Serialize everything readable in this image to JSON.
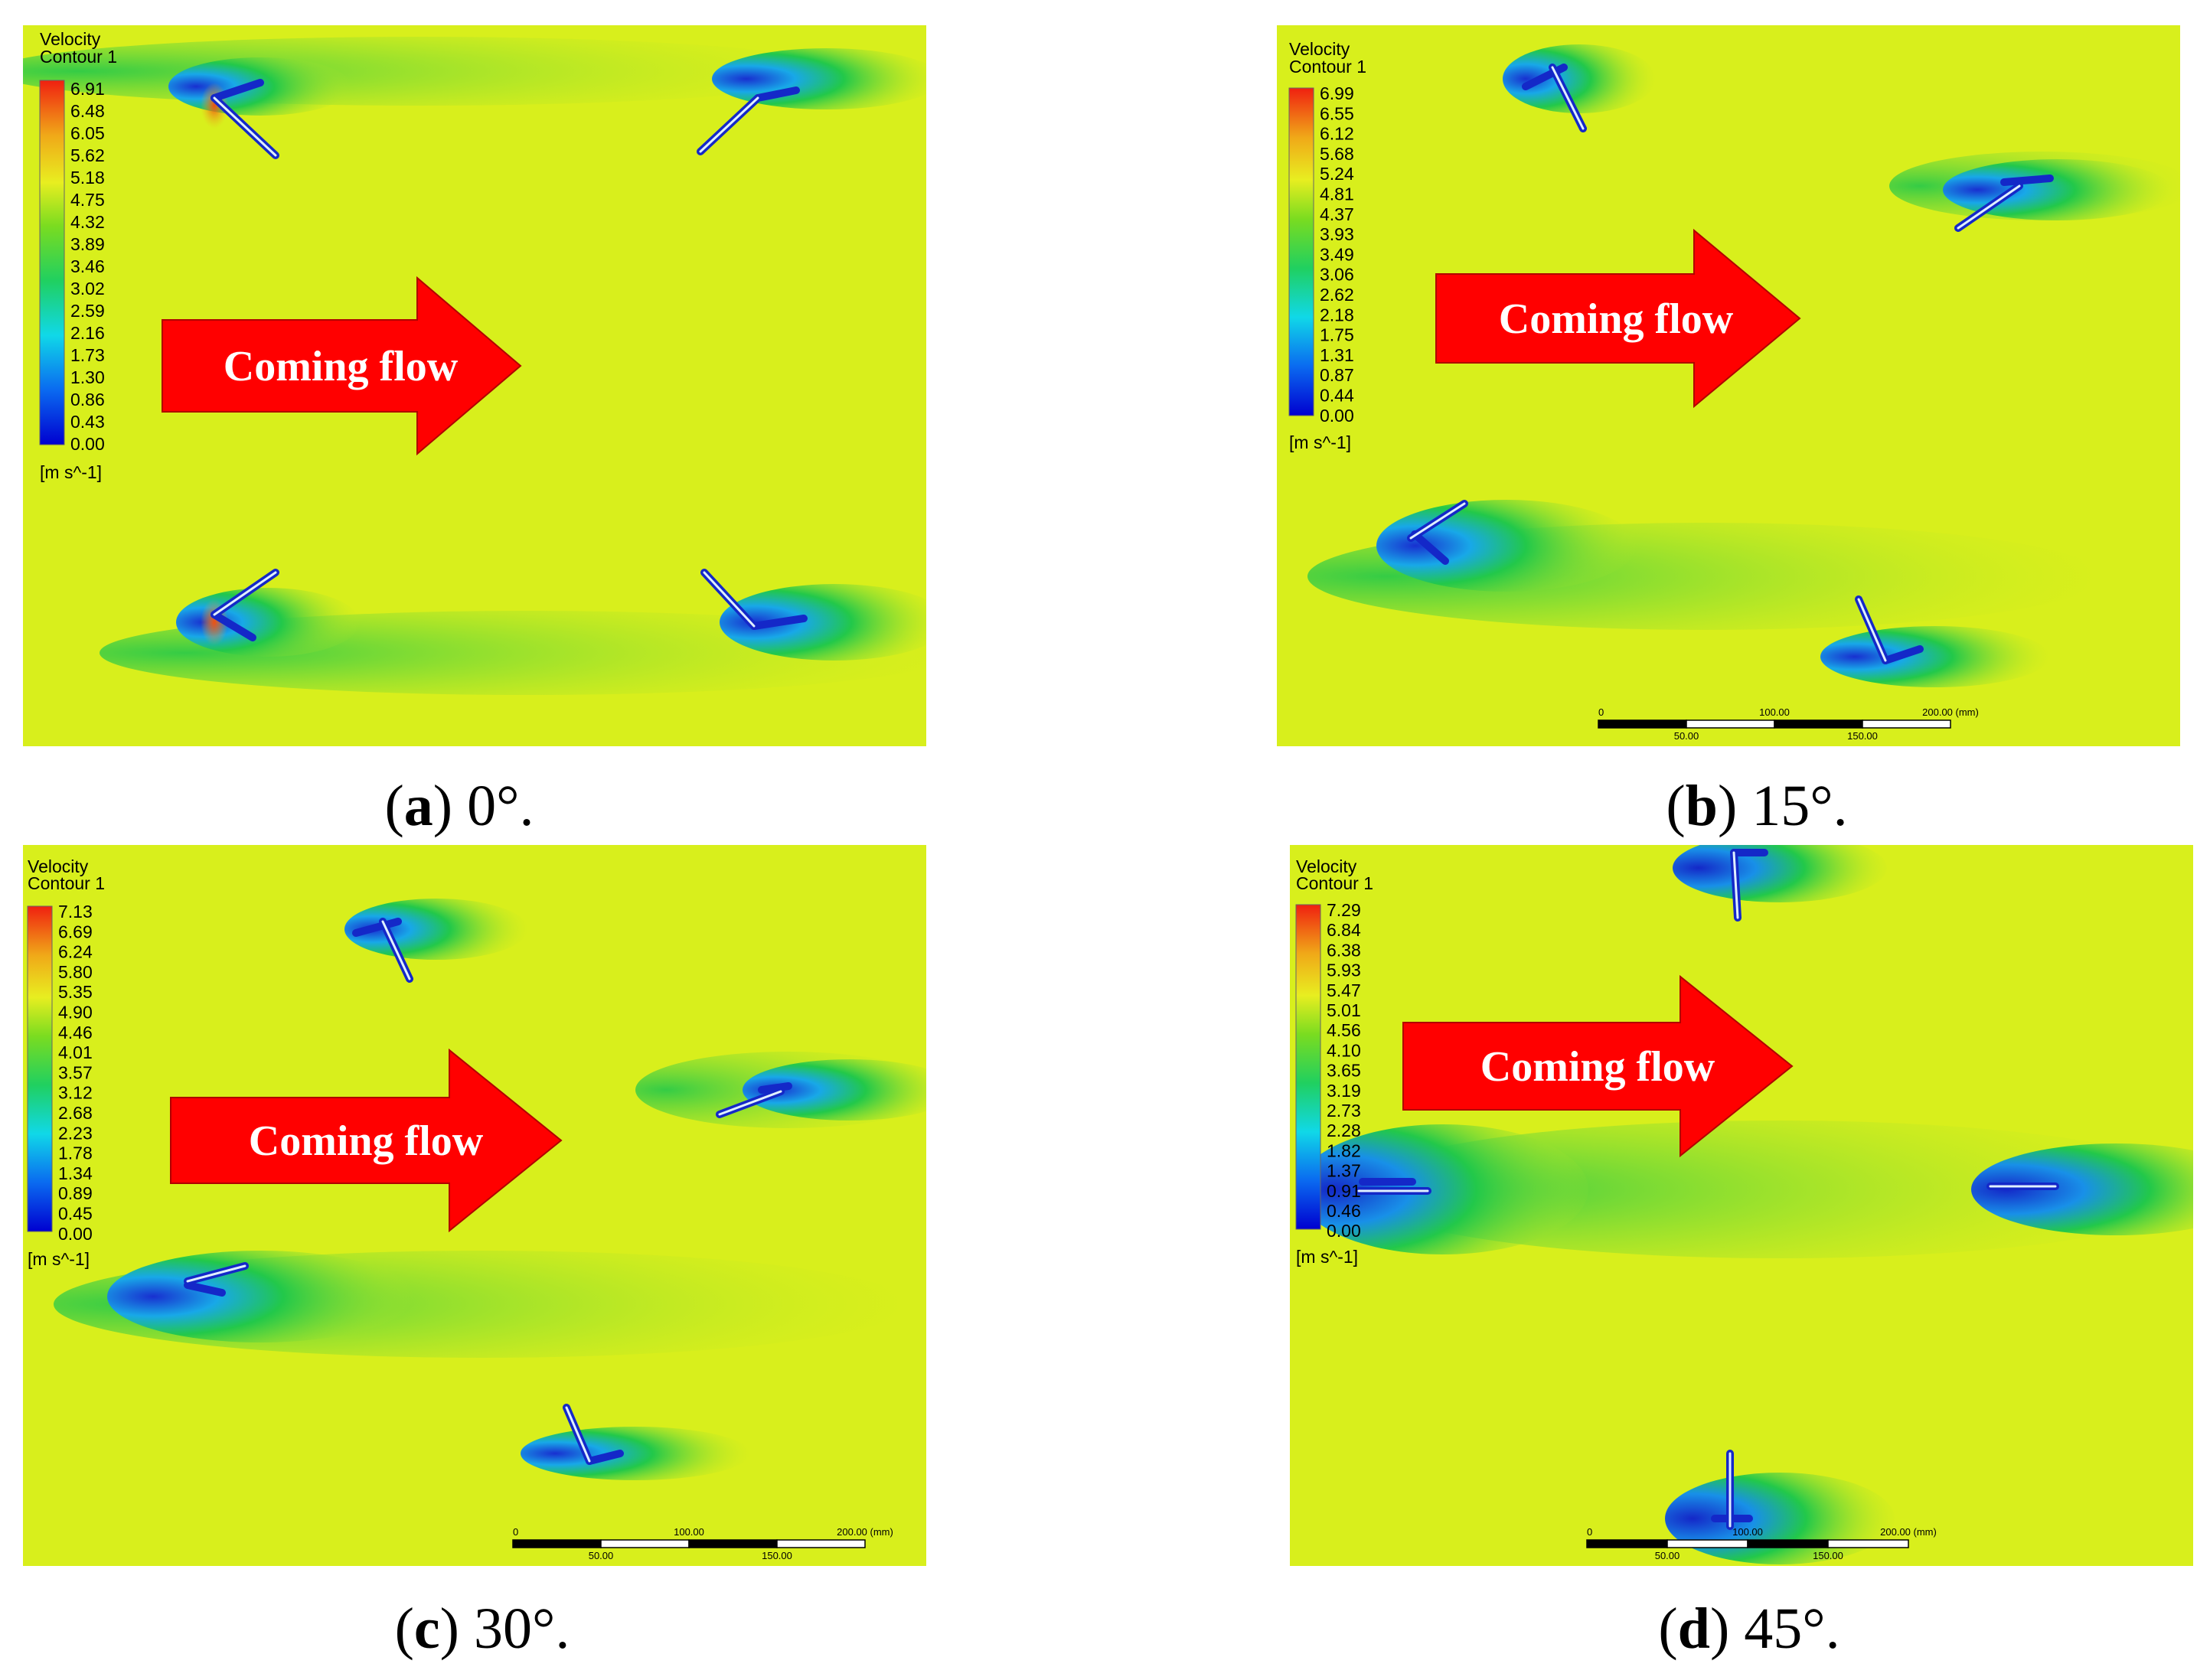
{
  "figure": {
    "panels": [
      {
        "id": "a",
        "legend_title": [
          "Velocity",
          "Contour 1"
        ],
        "ticks": [
          "6.91",
          "6.48",
          "6.05",
          "5.62",
          "5.18",
          "4.75",
          "4.32",
          "3.89",
          "3.46",
          "3.02",
          "2.59",
          "2.16",
          "1.73",
          "1.30",
          "0.86",
          "0.43",
          "0.00"
        ],
        "unit": "[m s^-1]",
        "arrow_label": "Coming flow",
        "caption_letter": "a",
        "caption_rest": " 0°.",
        "scale_bar": null
      },
      {
        "id": "b",
        "legend_title": [
          "Velocity",
          "Contour 1"
        ],
        "ticks": [
          "6.99",
          "6.55",
          "6.12",
          "5.68",
          "5.24",
          "4.81",
          "4.37",
          "3.93",
          "3.49",
          "3.06",
          "2.62",
          "2.18",
          "1.75",
          "1.31",
          "0.87",
          "0.44",
          "0.00"
        ],
        "unit": "[m s^-1]",
        "arrow_label": "Coming flow",
        "caption_letter": "b",
        "caption_rest": " 15°.",
        "scale_bar": {
          "top": [
            "0",
            "100.00",
            "200.00  (mm)"
          ],
          "bottom": [
            "50.00",
            "150.00"
          ]
        }
      },
      {
        "id": "c",
        "legend_title": [
          "Velocity",
          "Contour 1"
        ],
        "ticks": [
          "7.13",
          "6.69",
          "6.24",
          "5.80",
          "5.35",
          "4.90",
          "4.46",
          "4.01",
          "3.57",
          "3.12",
          "2.68",
          "2.23",
          "1.78",
          "1.34",
          "0.89",
          "0.45",
          "0.00"
        ],
        "unit": "[m s^-1]",
        "arrow_label": "Coming flow",
        "caption_letter": "c",
        "caption_rest": " 30°.",
        "scale_bar": {
          "top": [
            "0",
            "100.00",
            "200.00  (mm)"
          ],
          "bottom": [
            "50.00",
            "150.00"
          ]
        }
      },
      {
        "id": "d",
        "legend_title": [
          "Velocity",
          "Contour 1"
        ],
        "ticks": [
          "7.29",
          "6.84",
          "6.38",
          "5.93",
          "5.47",
          "5.01",
          "4.56",
          "4.10",
          "3.65",
          "3.19",
          "2.73",
          "2.28",
          "1.82",
          "1.37",
          "0.91",
          "0.46",
          "0.00"
        ],
        "unit": "[m s^-1]",
        "arrow_label": "Coming flow",
        "caption_letter": "d",
        "caption_rest": " 45°.",
        "scale_bar": {
          "top": [
            "0",
            "100.00",
            "200.00  (mm)"
          ],
          "bottom": [
            "50.00",
            "150.00"
          ]
        }
      }
    ],
    "colors": {
      "freestream": "#d8ef1c",
      "wake": "#22c84a",
      "low_velocity": "#1e3cd8",
      "high_velocity": "#f04010",
      "arrow": "#ff0000"
    }
  }
}
